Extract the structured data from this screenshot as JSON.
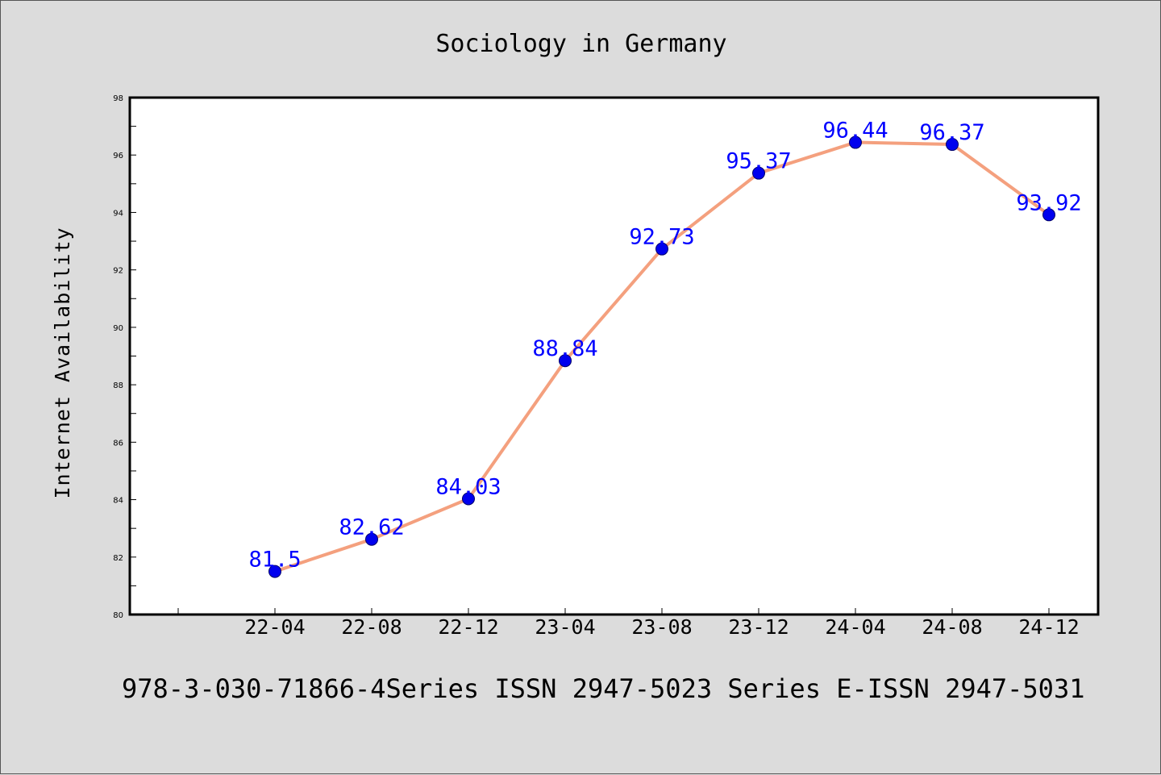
{
  "chart_data": {
    "type": "line",
    "title": "Sociology in Germany",
    "xlabel": "",
    "ylabel": "Internet Availability",
    "categories": [
      "22-04",
      "22-08",
      "22-12",
      "23-04",
      "23-08",
      "23-12",
      "24-04",
      "24-08",
      "24-12"
    ],
    "series": [
      {
        "values": [
          81.5,
          82.62,
          84.03,
          88.84,
          92.73,
          95.37,
          96.44,
          96.37,
          93.92
        ]
      }
    ],
    "data_labels": [
      "81.5",
      "82.62",
      "84.03",
      "88.84",
      "92.73",
      "95.37",
      "96.44",
      "96.37",
      "93.92"
    ],
    "ylim": [
      80,
      98
    ],
    "yticks": [
      80,
      82,
      84,
      86,
      88,
      90,
      92,
      94,
      96,
      98
    ],
    "ytick_labels": [
      "80",
      "82",
      "84",
      "86",
      "88",
      "90",
      "92",
      "94",
      "96",
      "98"
    ],
    "grid": false,
    "legend": "none",
    "colors": {
      "line": "#f4a07e",
      "marker": "#0000ee",
      "marker_stroke": "#00006a",
      "label": "#0000ff",
      "plot_bg": "#ffffff",
      "page_bg": "#dcdcdc"
    }
  },
  "footer": {
    "text": "978-3-030-71866-4Series ISSN 2947-5023 Series E-ISSN 2947-5031"
  }
}
